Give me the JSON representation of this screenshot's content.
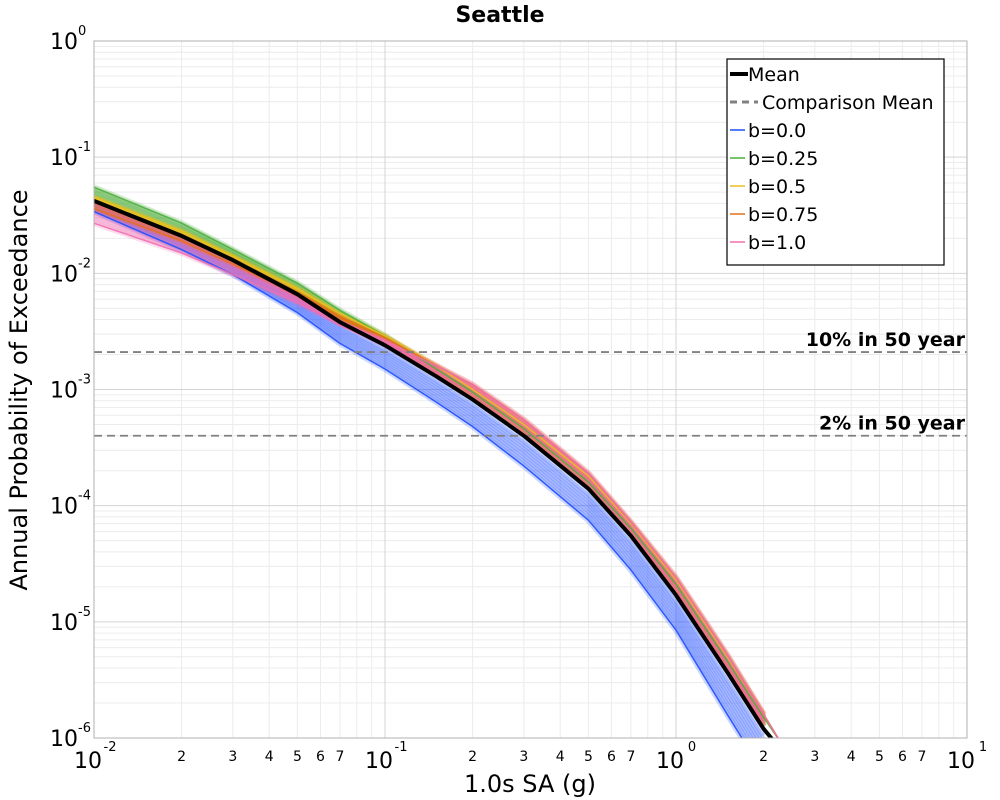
{
  "chart_data": {
    "type": "line",
    "title": "Seattle",
    "xlabel": "1.0s SA (g)",
    "ylabel": "Annual Probability of Exceedance",
    "xscale": "log",
    "yscale": "log",
    "xlim": [
      0.01,
      10
    ],
    "ylim": [
      1e-06,
      1
    ],
    "grid": true,
    "legend_position": "top-right",
    "x_major_ticks": [
      {
        "value": 0.01,
        "base": "10",
        "exp": "-2"
      },
      {
        "value": 0.1,
        "base": "10",
        "exp": "-1"
      },
      {
        "value": 1,
        "base": "10",
        "exp": "0"
      },
      {
        "value": 10,
        "base": "10",
        "exp": "1"
      }
    ],
    "y_major_ticks": [
      {
        "value": 1,
        "base": "10",
        "exp": "0"
      },
      {
        "value": 0.1,
        "base": "10",
        "exp": "-1"
      },
      {
        "value": 0.01,
        "base": "10",
        "exp": "-2"
      },
      {
        "value": 0.001,
        "base": "10",
        "exp": "-3"
      },
      {
        "value": 0.0001,
        "base": "10",
        "exp": "-4"
      },
      {
        "value": 1e-05,
        "base": "10",
        "exp": "-5"
      },
      {
        "value": 1e-06,
        "base": "10",
        "exp": "-6"
      }
    ],
    "x_minor_tick_labels": [
      "2",
      "3",
      "4",
      "5",
      "6",
      "7"
    ],
    "series": [
      {
        "name": "Mean",
        "color": "#000000",
        "style": "solid",
        "x": [
          0.01,
          0.02,
          0.03,
          0.05,
          0.07,
          0.1,
          0.15,
          0.2,
          0.3,
          0.5,
          0.7,
          1.0,
          1.5,
          2.0,
          2.2
        ],
        "y": [
          0.042,
          0.021,
          0.013,
          0.0066,
          0.0038,
          0.0024,
          0.0013,
          0.00082,
          0.0004,
          0.00014,
          5.5e-05,
          1.7e-05,
          3.7e-06,
          1.2e-06,
          9e-07
        ]
      },
      {
        "name": "Comparison Mean",
        "color": "#808080",
        "style": "dashed",
        "x": [],
        "y": []
      },
      {
        "name": "b=0.0",
        "color": "#1f4fff",
        "x": [
          0.01,
          0.02,
          0.03,
          0.05,
          0.07,
          0.1,
          0.15,
          0.2,
          0.3,
          0.5,
          0.7,
          1.0,
          1.5,
          2.0
        ],
        "y": [
          0.034,
          0.016,
          0.0098,
          0.0046,
          0.0025,
          0.0015,
          0.00078,
          0.00048,
          0.00022,
          7.5e-05,
          2.8e-05,
          8.5e-06,
          1.6e-06,
          5e-07
        ]
      },
      {
        "name": "b=0.25",
        "color": "#4caf3c",
        "x": [
          0.01,
          0.02,
          0.03,
          0.05,
          0.07,
          0.1,
          0.15,
          0.2,
          0.3,
          0.5,
          0.7,
          1.0,
          1.5,
          2.0,
          2.3
        ],
        "y": [
          0.055,
          0.027,
          0.016,
          0.0082,
          0.0048,
          0.0029,
          0.0015,
          0.00095,
          0.00046,
          0.00016,
          6.4e-05,
          2.1e-05,
          4.6e-06,
          1.5e-06,
          9e-07
        ]
      },
      {
        "name": "b=0.5",
        "color": "#e8c020",
        "x": [
          0.01,
          0.02,
          0.03,
          0.05,
          0.07,
          0.1,
          0.15,
          0.2,
          0.3,
          0.5,
          0.7,
          1.0,
          1.5,
          2.0,
          2.3
        ],
        "y": [
          0.045,
          0.023,
          0.014,
          0.0074,
          0.0045,
          0.0029,
          0.0016,
          0.001,
          0.0005,
          0.00018,
          7e-05,
          2.3e-05,
          5e-06,
          1.6e-06,
          9e-07
        ]
      },
      {
        "name": "b=0.75",
        "color": "#e0701a",
        "x": [
          0.01,
          0.02,
          0.03,
          0.05,
          0.07,
          0.1,
          0.15,
          0.2,
          0.3,
          0.5,
          0.7,
          1.0,
          1.5,
          2.0,
          2.3
        ],
        "y": [
          0.036,
          0.019,
          0.012,
          0.0066,
          0.0042,
          0.0028,
          0.0016,
          0.0011,
          0.00055,
          0.00019,
          7.2e-05,
          2.4e-05,
          5.2e-06,
          1.6e-06,
          9e-07
        ]
      },
      {
        "name": "b=1.0",
        "color": "#f06fb0",
        "x": [
          0.01,
          0.02,
          0.03,
          0.05,
          0.07,
          0.1,
          0.15,
          0.2,
          0.3,
          0.5,
          0.7,
          1.0,
          1.5,
          2.0,
          2.3
        ],
        "y": [
          0.027,
          0.015,
          0.0098,
          0.0056,
          0.0037,
          0.0026,
          0.0016,
          0.0011,
          0.00055,
          0.00019,
          7.2e-05,
          2.4e-05,
          5.2e-06,
          1.6e-06,
          9e-07
        ]
      }
    ],
    "reference_lines": [
      {
        "label": "10% in 50 year",
        "y": 0.0021,
        "color": "#808080",
        "style": "dashed"
      },
      {
        "label": "2% in 50 year",
        "y": 0.0004,
        "color": "#808080",
        "style": "dashed"
      }
    ]
  }
}
